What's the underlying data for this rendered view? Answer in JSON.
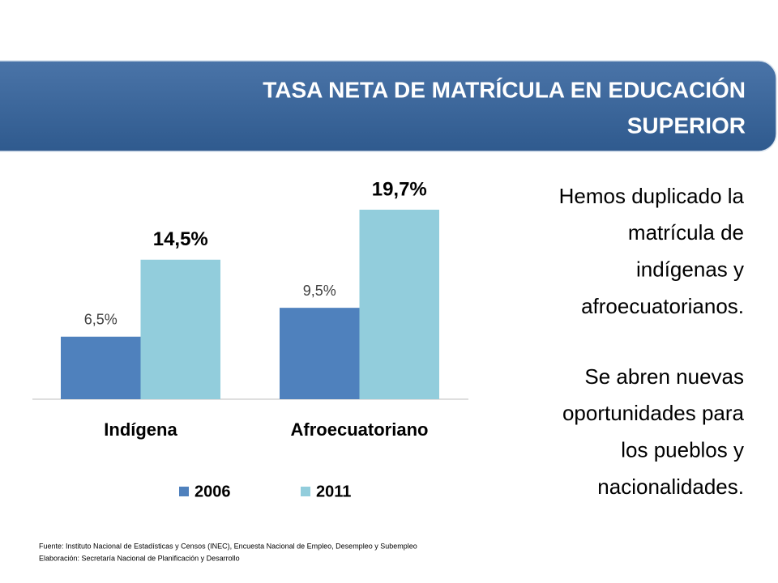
{
  "chart_data": {
    "type": "bar",
    "title": [
      "TASA NETA DE MATRÍCULA EN EDUCACIÓN",
      "SUPERIOR"
    ],
    "categories": [
      "Indígena",
      "Afroecuatoriano"
    ],
    "series": [
      {
        "name": "2006",
        "color": "#4f81bd",
        "values": [
          6.5,
          9.5
        ],
        "value_labels": [
          "6,5%",
          "9,5%"
        ]
      },
      {
        "name": "2011",
        "color": "#92cddc",
        "values": [
          14.5,
          19.7
        ],
        "value_labels": [
          "14,5%",
          "19,7%"
        ]
      }
    ],
    "legend": "bottom"
  },
  "side_text": [
    [
      "Hemos duplicado la",
      "matrícula de",
      "indígenas y",
      "afroecuatorianos."
    ],
    [
      "Se abren nuevas",
      "oportunidades para",
      "los pueblos y",
      "nacionalidades."
    ]
  ],
  "footnotes": [
    "Fuente:  Instituto Nacional de Estadísticas y Censos  (INEC), Encuesta Nacional de Empleo, Desempleo y Subempleo",
    "Elaboración: Secretaría Nacional de Planificación y Desarrollo"
  ]
}
